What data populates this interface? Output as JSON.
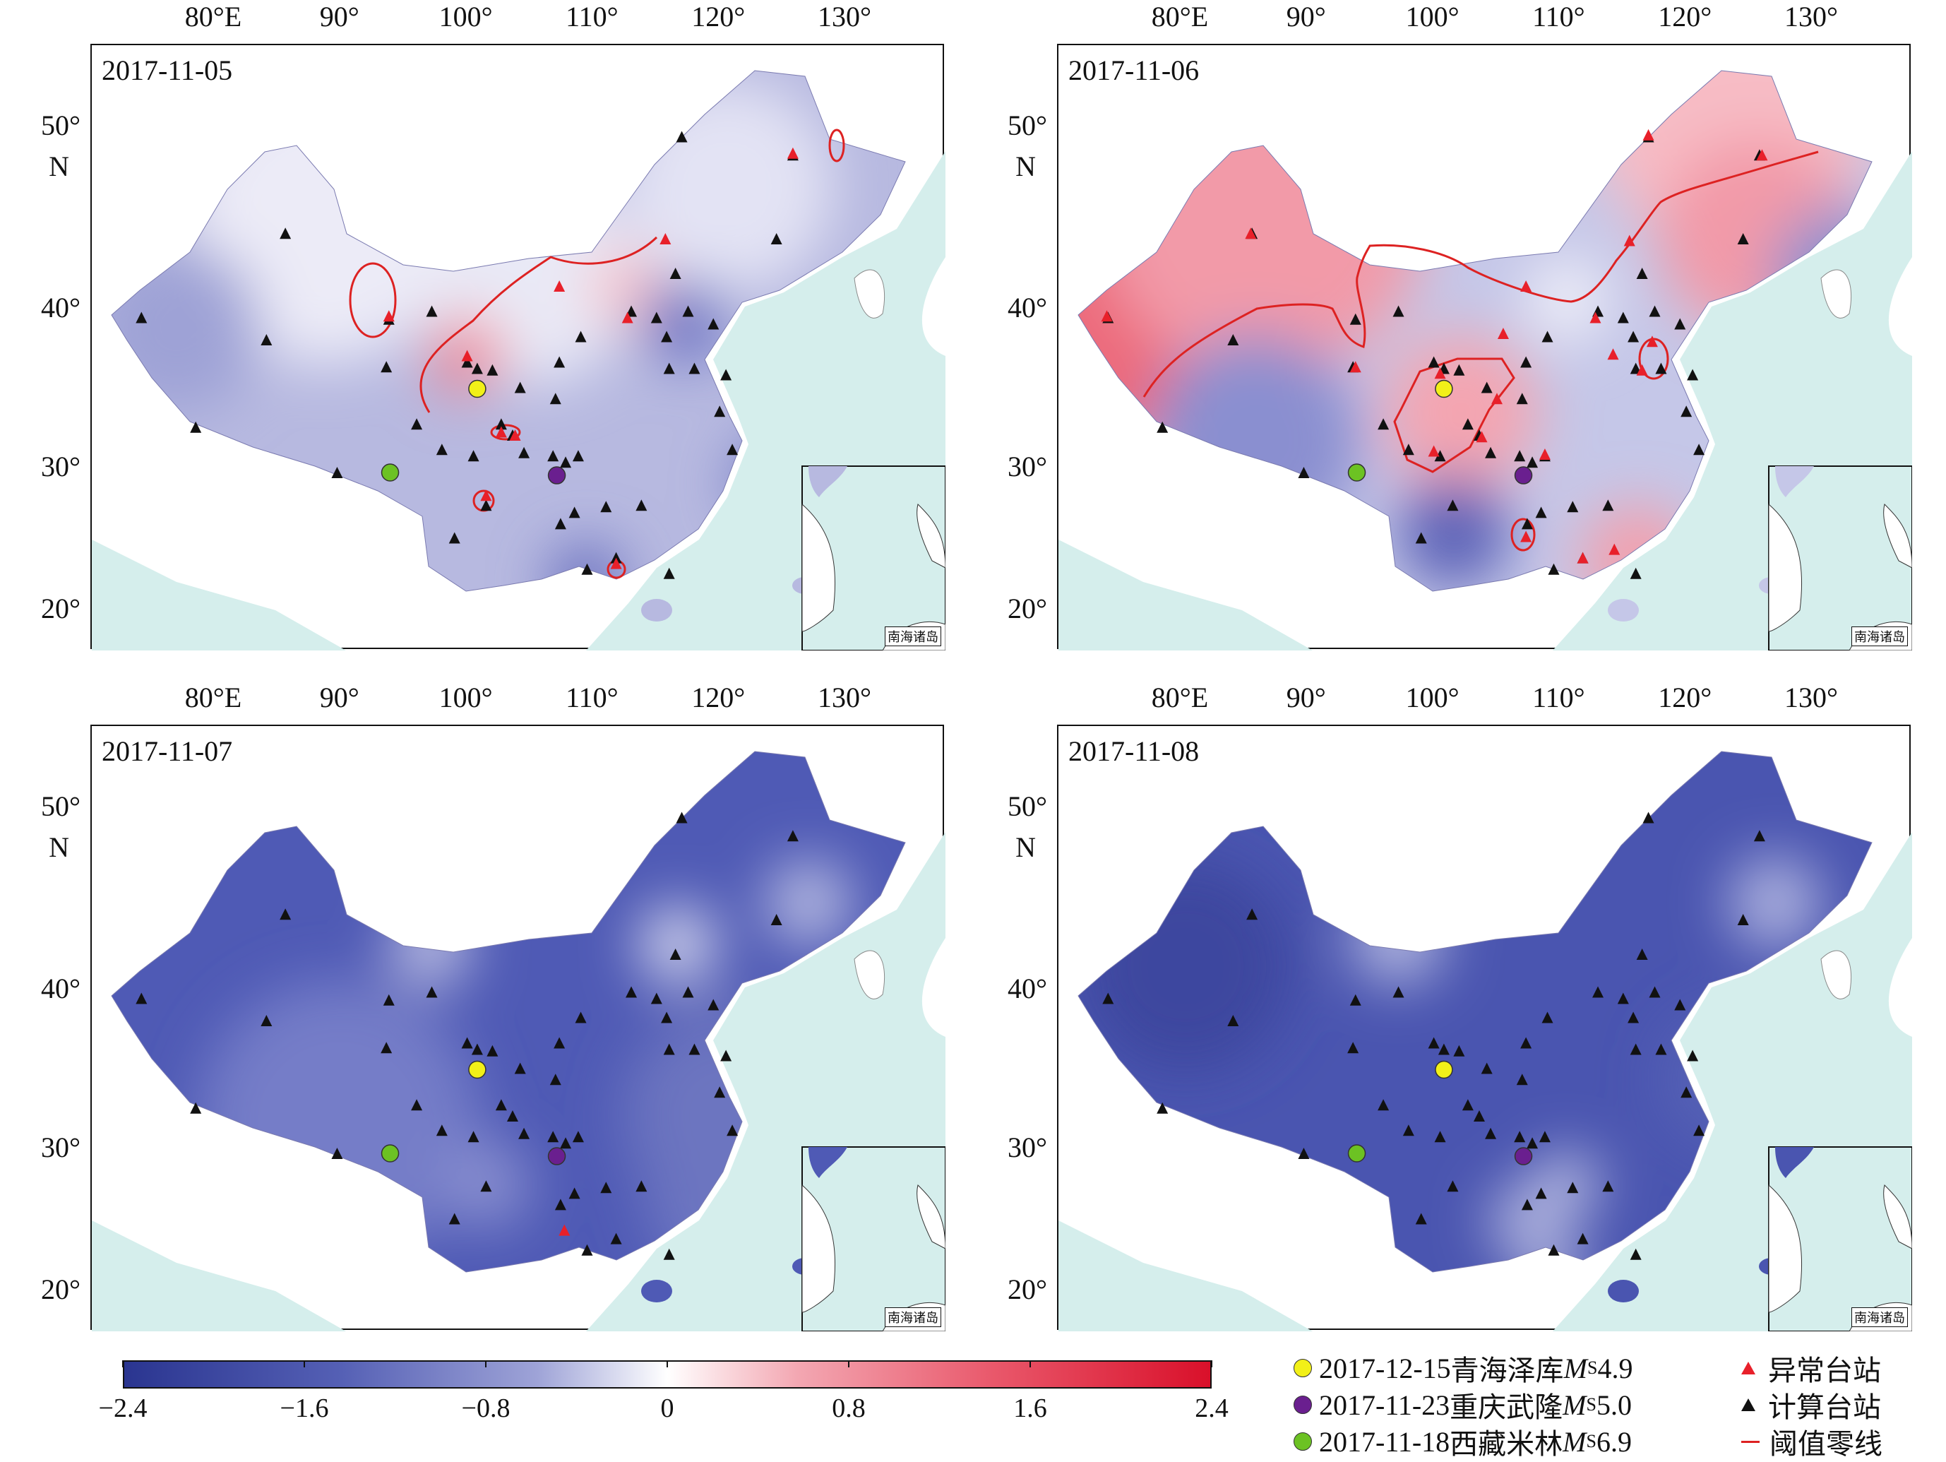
{
  "panels": [
    {
      "date": "2017-11-05",
      "scheme": "p1"
    },
    {
      "date": "2017-11-06",
      "scheme": "p2"
    },
    {
      "date": "2017-11-07",
      "scheme": "p3"
    },
    {
      "date": "2017-11-08",
      "scheme": "p4"
    }
  ],
  "axes": {
    "lon_labels": [
      {
        "lon": 80,
        "text": "80°E"
      },
      {
        "lon": 90,
        "text": "90°"
      },
      {
        "lon": 100,
        "text": "100°"
      },
      {
        "lon": 110,
        "text": "110°"
      },
      {
        "lon": 120,
        "text": "120°"
      },
      {
        "lon": 130,
        "text": "130°"
      }
    ],
    "lat_labels": [
      {
        "lat": 50,
        "text": "50°"
      },
      {
        "lat": 40,
        "text": "40°"
      },
      {
        "lat": 30,
        "text": "30°"
      },
      {
        "lat": 20,
        "text": "20°"
      }
    ],
    "north_label": "N"
  },
  "inset_label": "南海诸岛",
  "stations_lonlat": [
    [
      74.2,
      39.4
    ],
    [
      78.5,
      32.5
    ],
    [
      84.1,
      38.0
    ],
    [
      85.6,
      44.1
    ],
    [
      89.7,
      29.6
    ],
    [
      93.6,
      36.3
    ],
    [
      93.8,
      39.3
    ],
    [
      96.0,
      32.7
    ],
    [
      97.2,
      39.8
    ],
    [
      98.0,
      31.1
    ],
    [
      100.0,
      36.6
    ],
    [
      100.8,
      36.2
    ],
    [
      102.0,
      36.1
    ],
    [
      100.5,
      30.7
    ],
    [
      101.5,
      27.3
    ],
    [
      102.7,
      32.7
    ],
    [
      104.2,
      35.0
    ],
    [
      103.6,
      32.0
    ],
    [
      104.5,
      30.9
    ],
    [
      106.8,
      30.7
    ],
    [
      107.0,
      34.3
    ],
    [
      107.3,
      36.6
    ],
    [
      107.8,
      30.3
    ],
    [
      108.8,
      30.7
    ],
    [
      109.0,
      38.2
    ],
    [
      107.4,
      26.0
    ],
    [
      108.5,
      26.8
    ],
    [
      109.5,
      22.8
    ],
    [
      111.0,
      27.2
    ],
    [
      111.8,
      23.6
    ],
    [
      113.0,
      39.8
    ],
    [
      115.0,
      39.4
    ],
    [
      115.8,
      38.2
    ],
    [
      116.0,
      36.2
    ],
    [
      116.5,
      41.9
    ],
    [
      117.0,
      49.4
    ],
    [
      117.5,
      39.8
    ],
    [
      118.0,
      36.2
    ],
    [
      119.5,
      39.0
    ],
    [
      120.0,
      33.5
    ],
    [
      120.5,
      35.8
    ],
    [
      121.0,
      31.1
    ],
    [
      124.5,
      43.8
    ],
    [
      125.8,
      48.4
    ],
    [
      113.8,
      27.3
    ],
    [
      116.0,
      22.5
    ],
    [
      99.0,
      25.0
    ]
  ],
  "anomalous_stations": [
    [
      [
        125.8,
        48.5
      ],
      [
        115.7,
        43.8
      ],
      [
        107.3,
        41.2
      ],
      [
        112.7,
        39.4
      ],
      [
        93.8,
        39.5
      ],
      [
        100.0,
        37.0
      ],
      [
        102.7,
        32.2
      ],
      [
        103.8,
        32.0
      ],
      [
        101.5,
        28.0
      ],
      [
        111.8,
        23.2
      ]
    ],
    [
      [
        117.0,
        49.5
      ],
      [
        126.0,
        48.4
      ],
      [
        85.5,
        44.1
      ],
      [
        115.5,
        43.7
      ],
      [
        74.1,
        39.5
      ],
      [
        93.8,
        36.3
      ],
      [
        100.5,
        35.9
      ],
      [
        107.3,
        41.2
      ],
      [
        105.5,
        38.4
      ],
      [
        112.8,
        39.4
      ],
      [
        114.2,
        37.1
      ],
      [
        117.3,
        37.9
      ],
      [
        116.5,
        36.1
      ],
      [
        100.0,
        31.0
      ],
      [
        105.0,
        34.3
      ],
      [
        103.8,
        31.9
      ],
      [
        108.8,
        30.8
      ],
      [
        107.3,
        25.1
      ],
      [
        111.8,
        23.6
      ],
      [
        114.3,
        24.2
      ]
    ],
    [
      [
        107.7,
        24.2
      ]
    ],
    []
  ],
  "earthquakes": [
    {
      "lon": 100.8,
      "lat": 35.0,
      "color": "#f2f018",
      "date": "2017-12-15",
      "place": "青海泽库",
      "mag_prefix": "M",
      "mag_sub": "S",
      "mag": "4.9"
    },
    {
      "lon": 107.1,
      "lat": 29.5,
      "color": "#6a1f8f",
      "date": "2017-11-23",
      "place": "重庆武隆",
      "mag_prefix": "M",
      "mag_sub": "S",
      "mag": "5.0"
    },
    {
      "lon": 93.9,
      "lat": 29.7,
      "color": "#6cc223",
      "date": "2017-11-18",
      "place": "西藏米林",
      "mag_prefix": "M",
      "mag_sub": "S",
      "mag": "6.9"
    }
  ],
  "colorbar": {
    "min": -2.4,
    "max": 2.4,
    "ticks": [
      "−2.4",
      "−1.6",
      "−0.8",
      "0",
      "0.8",
      "1.6",
      "2.4"
    ],
    "tick_values": [
      -2.4,
      -1.6,
      -0.8,
      0,
      0.8,
      1.6,
      2.4
    ],
    "colors": {
      "low": "#2a3590",
      "mid": "#ffffff",
      "high": "#d9102a"
    }
  },
  "legend": {
    "anomaly": "异常台站",
    "computed": "计算台站",
    "threshold": "阈值零线",
    "anomaly_color": "#e8202a",
    "computed_color": "#111111",
    "threshold_color": "#d22222"
  }
}
